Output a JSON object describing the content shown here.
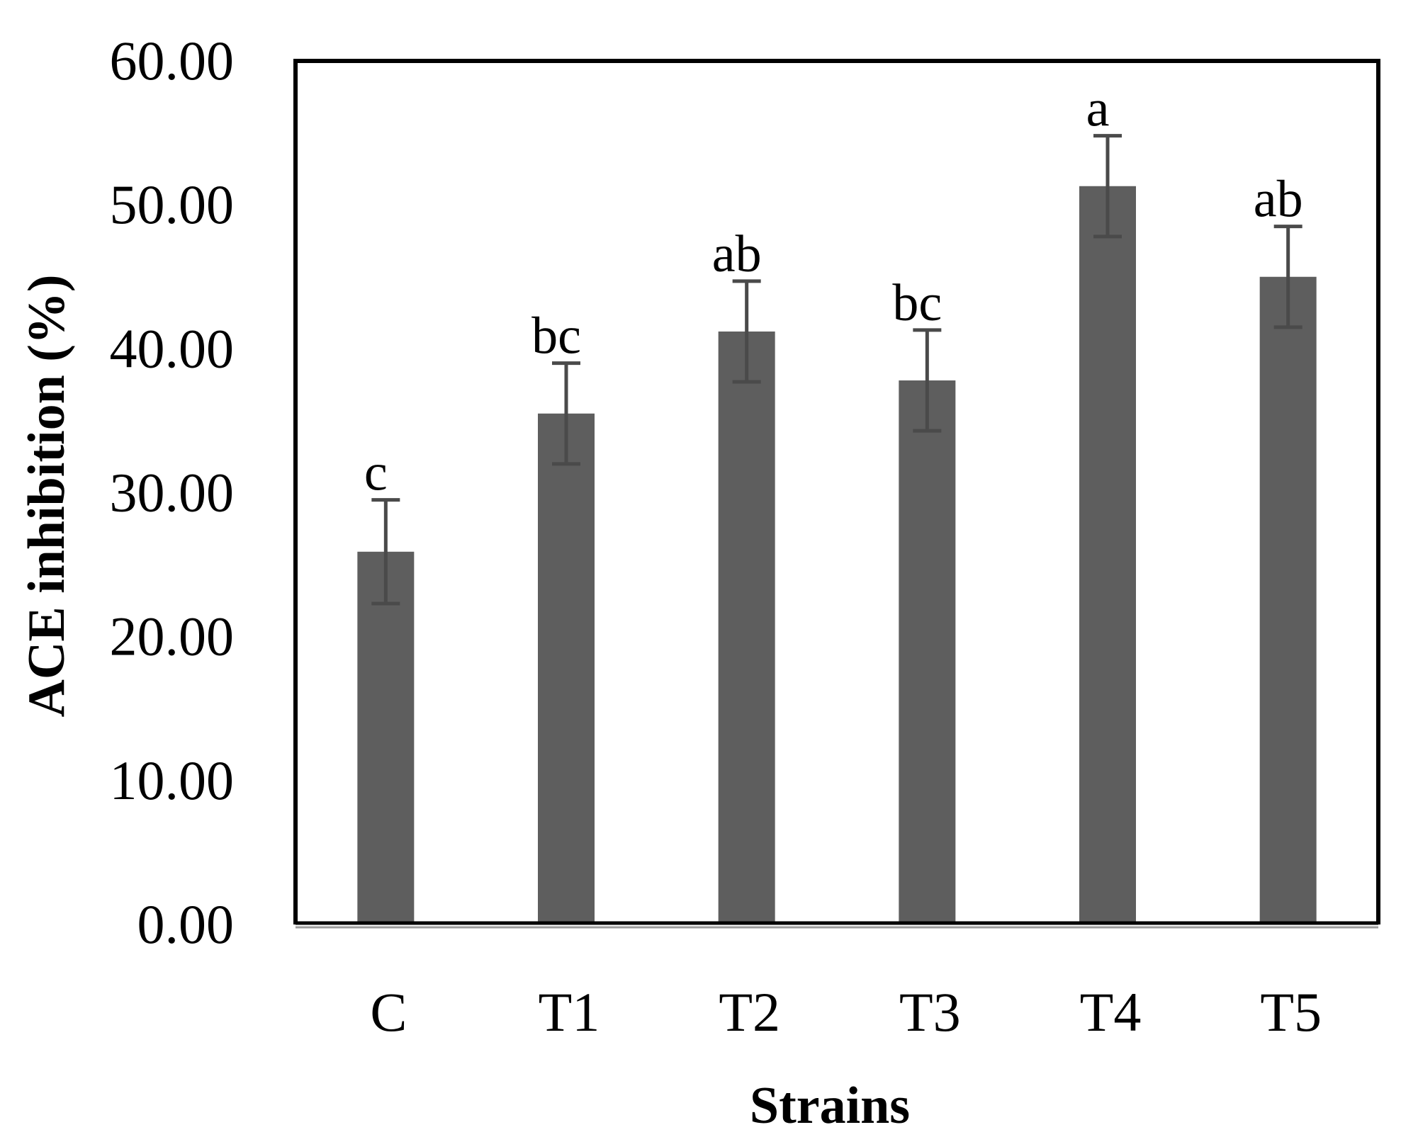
{
  "chart_data": {
    "type": "bar",
    "title": "",
    "xlabel": "Strains",
    "ylabel": "ACE inhibition (%)",
    "ylim": [
      0,
      60
    ],
    "yticks": [
      "0.00",
      "10.00",
      "20.00",
      "30.00",
      "40.00",
      "50.00",
      "60.00"
    ],
    "grid": false,
    "legend": "none",
    "categories": [
      "C",
      "T1",
      "T2",
      "T3",
      "T4",
      "T5"
    ],
    "series": [
      {
        "values": [
          25.9,
          35.5,
          41.2,
          37.8,
          51.3,
          45.0
        ],
        "errors": [
          3.6,
          3.5,
          3.5,
          3.5,
          3.5,
          3.5
        ],
        "significance": [
          "c",
          "bc",
          "ab",
          "bc",
          "a",
          "ab"
        ],
        "color": "#5e5e5e"
      }
    ],
    "colors": {
      "bar": "#5e5e5e",
      "error_bar": "#4a4a4a",
      "frame": "#000000"
    }
  }
}
